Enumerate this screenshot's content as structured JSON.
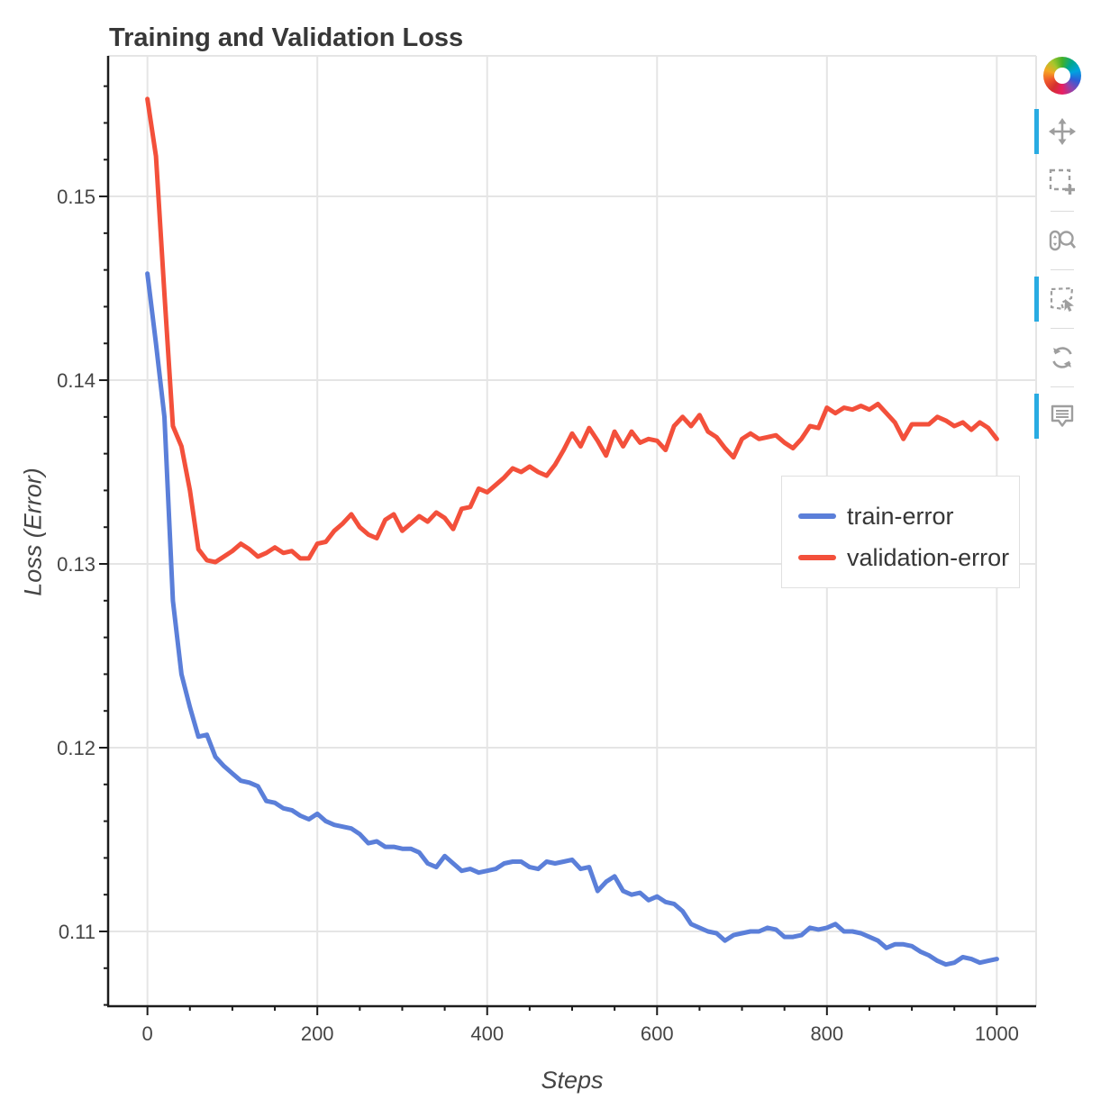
{
  "title": "Training and Validation Loss",
  "colors": {
    "train": "#5b7fd9",
    "validation": "#f3503b",
    "active_tool": "#29abe2",
    "icon_gray": "#9e9e9e",
    "grid": "#e5e5e5",
    "axis": "#1c1c1c",
    "frame_border": "#e5e5e5"
  },
  "legend": {
    "items": [
      {
        "label": "train-error",
        "color": "#5b7fd9"
      },
      {
        "label": "validation-error",
        "color": "#f3503b"
      }
    ]
  },
  "toolbar": {
    "logo": "bokeh-logo",
    "tools": [
      {
        "name": "pan",
        "active": true
      },
      {
        "name": "box-zoom",
        "active": false
      },
      {
        "name": "wheel-zoom",
        "active": false
      },
      {
        "name": "lasso-select",
        "active": true
      },
      {
        "name": "reset",
        "active": false
      },
      {
        "name": "hover",
        "active": true
      }
    ]
  },
  "chart_data": {
    "type": "line",
    "title": "Training and Validation Loss",
    "xlabel": "Steps",
    "ylabel": "Loss (Error)",
    "x_range": [
      -46.3,
      1046.3
    ],
    "y_range": [
      0.10593,
      0.15765
    ],
    "x_ticks": [
      0,
      200,
      400,
      600,
      800,
      1000
    ],
    "x_tick_labels": [
      "0",
      "200",
      "400",
      "600",
      "800",
      "1000"
    ],
    "y_ticks": [
      0.11,
      0.12,
      0.13,
      0.14,
      0.15
    ],
    "y_tick_labels": [
      "0.11",
      "0.12",
      "0.13",
      "0.14",
      "0.15"
    ],
    "x_minor_step": 50,
    "y_minor_step": 0.002,
    "grid": true,
    "legend_position": "right-middle",
    "x": [
      0,
      10,
      20,
      30,
      40,
      50,
      60,
      70,
      80,
      90,
      100,
      110,
      120,
      130,
      140,
      150,
      160,
      170,
      180,
      190,
      200,
      210,
      220,
      230,
      240,
      250,
      260,
      270,
      280,
      290,
      300,
      310,
      320,
      330,
      340,
      350,
      360,
      370,
      380,
      390,
      400,
      410,
      420,
      430,
      440,
      450,
      460,
      470,
      480,
      490,
      500,
      510,
      520,
      530,
      540,
      550,
      560,
      570,
      580,
      590,
      600,
      610,
      620,
      630,
      640,
      650,
      660,
      670,
      680,
      690,
      700,
      710,
      720,
      730,
      740,
      750,
      760,
      770,
      780,
      790,
      800,
      810,
      820,
      830,
      840,
      850,
      860,
      870,
      880,
      890,
      900,
      910,
      920,
      930,
      940,
      950,
      960,
      970,
      980,
      990,
      1000
    ],
    "series": [
      {
        "name": "train-error",
        "color": "#5b7fd9",
        "values": [
          0.1458,
          0.142,
          0.138,
          0.128,
          0.124,
          0.1222,
          0.1206,
          0.1207,
          0.1195,
          0.119,
          0.1186,
          0.1182,
          0.1181,
          0.1179,
          0.1171,
          0.117,
          0.1167,
          0.1166,
          0.1163,
          0.1161,
          0.1164,
          0.116,
          0.1158,
          0.1157,
          0.1156,
          0.1153,
          0.1148,
          0.1149,
          0.1146,
          0.1146,
          0.1145,
          0.1145,
          0.1143,
          0.1137,
          0.1135,
          0.1141,
          0.1137,
          0.1133,
          0.1134,
          0.1132,
          0.1133,
          0.1134,
          0.1137,
          0.1138,
          0.1138,
          0.1135,
          0.1134,
          0.1138,
          0.1137,
          0.1138,
          0.1139,
          0.1134,
          0.1135,
          0.1122,
          0.1127,
          0.113,
          0.1122,
          0.112,
          0.1121,
          0.1117,
          0.1119,
          0.1116,
          0.1115,
          0.1111,
          0.1104,
          0.1102,
          0.11,
          0.1099,
          0.1095,
          0.1098,
          0.1099,
          0.11,
          0.11,
          0.1102,
          0.1101,
          0.1097,
          0.1097,
          0.1098,
          0.1102,
          0.1101,
          0.1102,
          0.1104,
          0.11,
          0.11,
          0.1099,
          0.1097,
          0.1095,
          0.1091,
          0.1093,
          0.1093,
          0.1092,
          0.1089,
          0.1087,
          0.1084,
          0.1082,
          0.1083,
          0.1086,
          0.1085,
          0.1083,
          0.1084,
          0.1085
        ]
      },
      {
        "name": "validation-error",
        "color": "#f3503b",
        "values": [
          0.1553,
          0.1522,
          0.1447,
          0.1375,
          0.1364,
          0.134,
          0.1308,
          0.1302,
          0.1301,
          0.1304,
          0.1307,
          0.1311,
          0.1308,
          0.1304,
          0.1306,
          0.1309,
          0.1306,
          0.1307,
          0.1303,
          0.1303,
          0.1311,
          0.1312,
          0.1318,
          0.1322,
          0.1327,
          0.132,
          0.1316,
          0.1314,
          0.1324,
          0.1327,
          0.1318,
          0.1322,
          0.1326,
          0.1323,
          0.1328,
          0.1325,
          0.1319,
          0.133,
          0.1331,
          0.1341,
          0.1339,
          0.1343,
          0.1347,
          0.1352,
          0.135,
          0.1353,
          0.135,
          0.1348,
          0.1354,
          0.1362,
          0.1371,
          0.1364,
          0.1374,
          0.1367,
          0.1359,
          0.1372,
          0.1364,
          0.1372,
          0.1366,
          0.1368,
          0.1367,
          0.1362,
          0.1375,
          0.138,
          0.1375,
          0.1381,
          0.1372,
          0.1369,
          0.1363,
          0.1358,
          0.1368,
          0.1371,
          0.1368,
          0.1369,
          0.137,
          0.1366,
          0.1363,
          0.1368,
          0.1375,
          0.1374,
          0.1385,
          0.1382,
          0.1385,
          0.1384,
          0.1386,
          0.1384,
          0.1387,
          0.1382,
          0.1377,
          0.1368,
          0.1376,
          0.1376,
          0.1376,
          0.138,
          0.1378,
          0.1375,
          0.1377,
          0.1373,
          0.1377,
          0.1374,
          0.1368
        ]
      }
    ]
  }
}
